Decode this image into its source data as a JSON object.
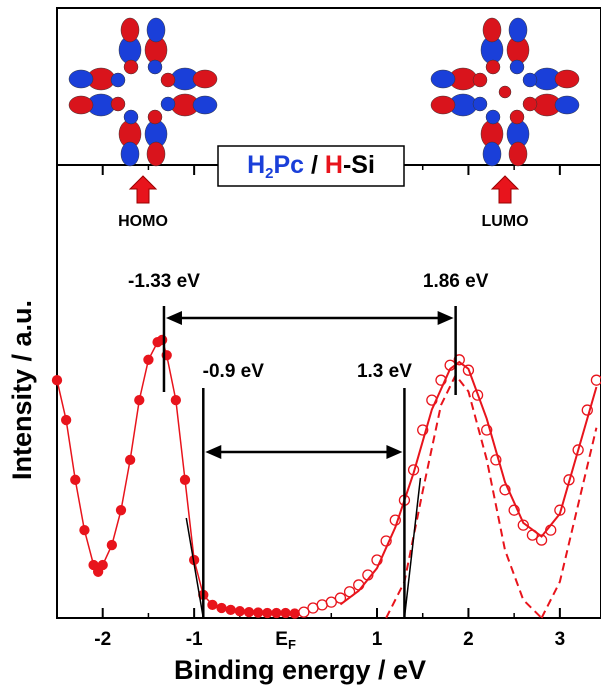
{
  "chart_data": {
    "type": "spectrum",
    "x_label": "Binding energy / eV",
    "y_label": "Intensity / a.u.",
    "xlim": [
      -2.5,
      3.45
    ],
    "ylim": [
      0,
      100
    ],
    "xticks": [
      -2,
      -1,
      {
        "value": 0,
        "label": "EF"
      },
      1,
      2,
      3
    ],
    "inset_title": [
      {
        "text": "H",
        "color": "#1a3fd9"
      },
      {
        "text": "2",
        "color": "#1a3fd9",
        "sub": true
      },
      {
        "text": "Pc",
        "color": "#1a3fd9"
      },
      {
        "text": " / ",
        "color": "#000000"
      },
      {
        "text": "H",
        "color": "#e8141c"
      },
      {
        "text": "-Si",
        "color": "#000000"
      }
    ],
    "orbital_labels": [
      "HOMO",
      "LUMO"
    ],
    "markers": [
      {
        "label": "-1.33 eV",
        "x": -1.33
      },
      {
        "label": "1.86 eV",
        "x": 1.86
      },
      {
        "label": "-0.9 eV",
        "x": -0.9
      },
      {
        "label": "1.3 eV",
        "x": 1.3
      }
    ],
    "series": [
      {
        "style": "filled",
        "color": "#e8141c",
        "x": [
          -2.5,
          -2.4,
          -2.3,
          -2.2,
          -2.1,
          -2.05,
          -2.0,
          -1.9,
          -1.8,
          -1.7,
          -1.6,
          -1.5,
          -1.4,
          -1.35,
          -1.3,
          -1.2,
          -1.1,
          -1.0,
          -0.9,
          -0.8,
          -0.7,
          -0.6,
          -0.5,
          -0.4,
          -0.3,
          -0.2,
          -0.1,
          0.0,
          0.1
        ],
        "values": [
          52.5,
          43.7,
          30.5,
          19.4,
          11.7,
          10.2,
          11.7,
          16.1,
          23.8,
          34.9,
          48.1,
          57,
          60.9,
          61.4,
          58,
          48.1,
          30.5,
          12.8,
          5.1,
          2.9,
          2.2,
          1.8,
          1.5,
          1.3,
          1.2,
          1.1,
          1.1,
          1.1,
          1.0
        ]
      },
      {
        "style": "open",
        "color": "#e8141c",
        "x": [
          0.2,
          0.3,
          0.4,
          0.5,
          0.6,
          0.7,
          0.8,
          0.9,
          1.0,
          1.1,
          1.2,
          1.3,
          1.4,
          1.5,
          1.6,
          1.7,
          1.8,
          1.9,
          2.0,
          2.1,
          2.2,
          2.3,
          2.4,
          2.5,
          2.6,
          2.7,
          2.8,
          2.9,
          3.0,
          3.1,
          3.2,
          3.3,
          3.4
        ],
        "values": [
          1.3,
          2.2,
          2.9,
          3.5,
          4.4,
          5.8,
          7.3,
          9.5,
          12.8,
          17,
          21.6,
          26,
          32.7,
          41.5,
          48.1,
          52.5,
          55.8,
          57,
          54.7,
          49.2,
          41.5,
          34.9,
          28.3,
          23.8,
          20.5,
          18.3,
          17.2,
          19.4,
          23.8,
          30.5,
          37.1,
          45.9,
          52.5
        ]
      },
      {
        "style": "line",
        "color": "#e8141c",
        "x": [
          0.6,
          0.8,
          1.0,
          1.2,
          1.4,
          1.6,
          1.8,
          1.9,
          2.0,
          2.2,
          2.4,
          2.6,
          2.8,
          3.0,
          3.2,
          3.4
        ],
        "values": [
          3,
          6,
          11,
          20,
          32,
          46,
          55,
          56.5,
          55,
          44,
          30,
          21,
          18,
          23,
          37,
          51
        ]
      },
      {
        "style": "dashed",
        "color": "#e8141c",
        "x": [
          1.1,
          1.3,
          1.5,
          1.7,
          1.86,
          2.0,
          2.2,
          2.4,
          2.6,
          2.8
        ],
        "values": [
          0,
          8,
          28,
          47,
          53.6,
          50,
          35,
          15,
          4,
          0
        ]
      },
      {
        "style": "dashed",
        "color": "#e8141c",
        "x": [
          2.8,
          3.0,
          3.2,
          3.4
        ],
        "values": [
          0,
          8,
          25,
          42
        ]
      }
    ]
  }
}
